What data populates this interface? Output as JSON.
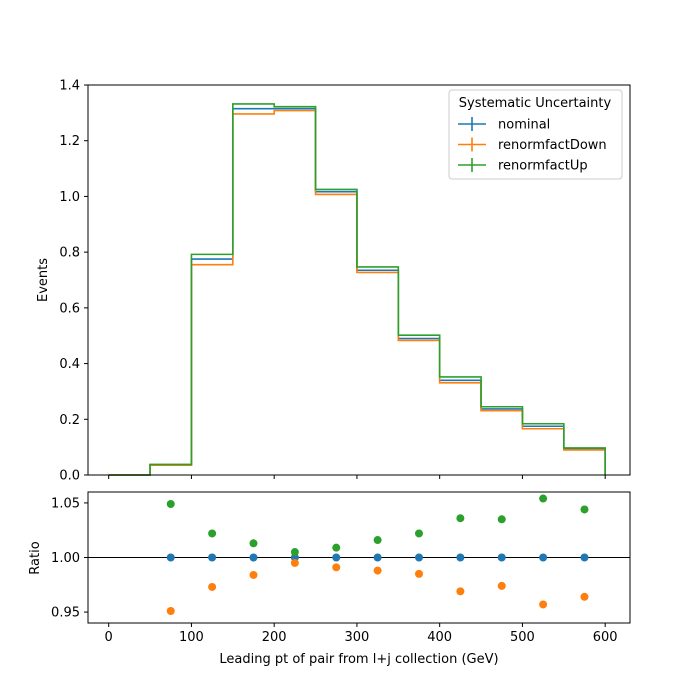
{
  "chart_data": [
    {
      "type": "step",
      "ylabel": "Events",
      "xlim": [
        -25,
        630
      ],
      "ylim": [
        0,
        1.4
      ],
      "x_edges": [
        0,
        50,
        100,
        150,
        200,
        250,
        300,
        350,
        400,
        450,
        500,
        550,
        600
      ],
      "x_ticks": [
        0,
        100,
        200,
        300,
        400,
        500,
        600
      ],
      "y_ticks": [
        0.0,
        0.2,
        0.4,
        0.6,
        0.8,
        1.0,
        1.2,
        1.4
      ],
      "y_tick_labels": [
        "0.0",
        "0.2",
        "0.4",
        "0.6",
        "0.8",
        "1.0",
        "1.2",
        "1.4"
      ],
      "legend": {
        "title": "Systematic Uncertainty",
        "placement": "upper right"
      },
      "series": [
        {
          "name": "nominal",
          "color": "#1f77b4",
          "values": [
            0.0,
            0.037,
            0.775,
            1.315,
            1.315,
            1.017,
            0.735,
            0.49,
            0.34,
            0.237,
            0.175,
            0.093
          ]
        },
        {
          "name": "renormfactDown",
          "color": "#ff7f0e",
          "values": [
            0.0,
            0.035,
            0.755,
            1.296,
            1.308,
            1.007,
            0.727,
            0.483,
            0.331,
            0.231,
            0.166,
            0.09
          ]
        },
        {
          "name": "renormfactUp",
          "color": "#2ca02c",
          "values": [
            0.0,
            0.038,
            0.792,
            1.332,
            1.322,
            1.025,
            0.747,
            0.502,
            0.352,
            0.245,
            0.184,
            0.097
          ]
        }
      ]
    },
    {
      "type": "scatter",
      "xlabel": "Leading pt of pair from l+j collection (GeV)",
      "ylabel": "Ratio",
      "xlim": [
        -25,
        630
      ],
      "ylim": [
        0.94,
        1.06
      ],
      "x_ticks": [
        0,
        100,
        200,
        300,
        400,
        500,
        600
      ],
      "y_ticks": [
        0.95,
        1.0,
        1.05
      ],
      "y_tick_labels": [
        "0.95",
        "1.00",
        "1.05"
      ],
      "reference_line": 1.0,
      "x": [
        75,
        125,
        175,
        225,
        275,
        325,
        375,
        425,
        475,
        525,
        575
      ],
      "series": [
        {
          "name": "nominal",
          "color": "#1f77b4",
          "values": [
            1.0,
            1.0,
            1.0,
            1.0,
            1.0,
            1.0,
            1.0,
            1.0,
            1.0,
            1.0,
            1.0
          ]
        },
        {
          "name": "renormfactDown",
          "color": "#ff7f0e",
          "values": [
            0.951,
            0.973,
            0.984,
            0.995,
            0.991,
            0.988,
            0.985,
            0.969,
            0.974,
            0.957,
            0.964
          ]
        },
        {
          "name": "renormfactUp",
          "color": "#2ca02c",
          "values": [
            1.049,
            1.022,
            1.013,
            1.005,
            1.009,
            1.016,
            1.022,
            1.036,
            1.035,
            1.054,
            1.044
          ]
        }
      ]
    }
  ]
}
